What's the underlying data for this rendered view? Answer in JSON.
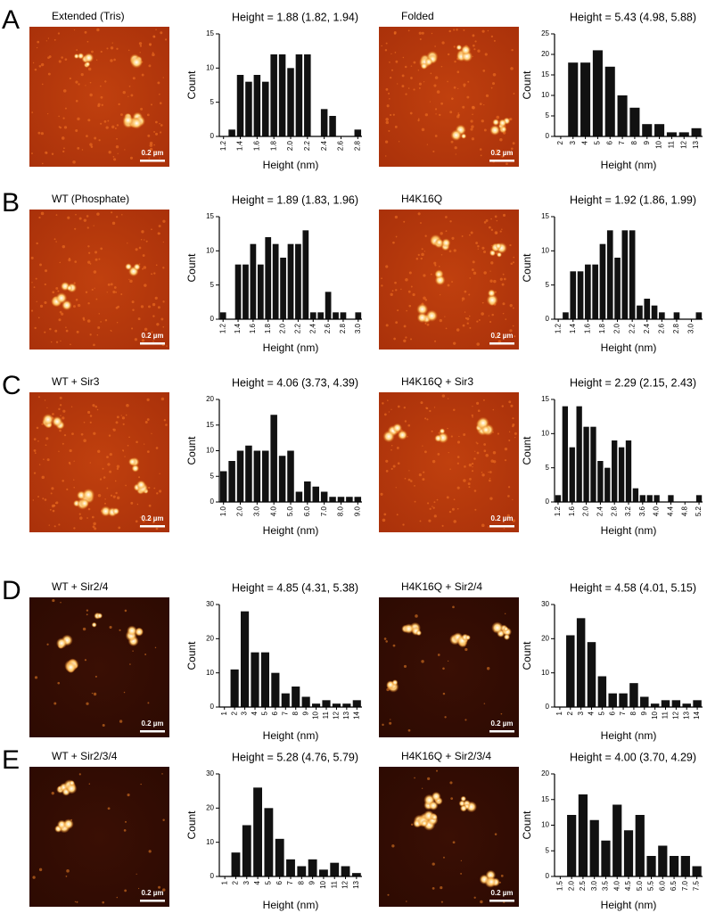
{
  "figure": {
    "panels": [
      {
        "label": "A",
        "images": [
          {
            "caption": "Extended (Tris)",
            "scale_bar": "0.2 µm"
          },
          {
            "caption": "Folded",
            "scale_bar": "0.2 µm"
          }
        ]
      },
      {
        "label": "B",
        "images": [
          {
            "caption": "WT (Phosphate)",
            "scale_bar": "0.2 µm"
          },
          {
            "caption": "H4K16Q",
            "scale_bar": "0.2 µm"
          }
        ]
      },
      {
        "label": "C",
        "images": [
          {
            "caption": "WT + Sir3",
            "scale_bar": "0.2 µm"
          },
          {
            "caption": "H4K16Q + Sir3",
            "scale_bar": "0.2 µm"
          }
        ]
      },
      {
        "label": "D",
        "images": [
          {
            "caption": "WT + Sir2/4",
            "scale_bar": "0.2 µm"
          },
          {
            "caption": "H4K16Q + Sir2/4",
            "scale_bar": "0.2 µm"
          }
        ]
      },
      {
        "label": "E",
        "images": [
          {
            "caption": "WT + Sir2/3/4",
            "scale_bar": "0.2 µm"
          },
          {
            "caption": "H4K16Q + Sir2/3/4",
            "scale_bar": "0.2 µm"
          }
        ]
      }
    ]
  },
  "chart_data": [
    {
      "type": "bar",
      "title": "Height = 1.88 (1.82, 1.94)",
      "x_label": "Height (nm)",
      "y_label": "Count",
      "color": "#111111",
      "categories": [
        "1.2",
        null,
        "1.4",
        null,
        "1.6",
        null,
        "1.8",
        null,
        "2.0",
        null,
        "2.2",
        null,
        "2.4",
        null,
        "2.6",
        null,
        "2.8"
      ],
      "values": [
        0,
        1,
        9,
        8,
        9,
        8,
        12,
        12,
        10,
        12,
        12,
        0,
        4,
        3,
        0,
        0,
        1
      ],
      "ylim": [
        0,
        15
      ],
      "yticks": [
        0,
        5,
        10,
        15
      ]
    },
    {
      "type": "bar",
      "title": "Height = 5.43 (4.98, 5.88)",
      "x_label": "Height (nm)",
      "y_label": "Count",
      "color": "#111111",
      "categories": [
        "2",
        "3",
        "4",
        "5",
        "6",
        "7",
        "8",
        "9",
        "10",
        "11",
        "12",
        "13"
      ],
      "values": [
        0,
        18,
        18,
        21,
        17,
        10,
        7,
        3,
        3,
        1,
        1,
        2
      ],
      "ylim": [
        0,
        25
      ],
      "yticks": [
        0,
        5,
        10,
        15,
        20,
        25
      ]
    },
    {
      "type": "bar",
      "title": "Height = 1.89 (1.83, 1.96)",
      "x_label": "Height (nm)",
      "y_label": "Count",
      "color": "#111111",
      "categories": [
        "1.2",
        null,
        "1.4",
        null,
        "1.6",
        null,
        "1.8",
        null,
        "2.0",
        null,
        "2.2",
        null,
        "2.4",
        null,
        "2.6",
        null,
        "2.8",
        null,
        "3.0"
      ],
      "values": [
        1,
        0,
        8,
        8,
        11,
        8,
        12,
        11,
        9,
        11,
        11,
        13,
        1,
        1,
        4,
        1,
        1,
        0,
        1
      ],
      "ylim": [
        0,
        15
      ],
      "yticks": [
        0,
        5,
        10,
        15
      ]
    },
    {
      "type": "bar",
      "title": "Height = 1.92 (1.86, 1.99)",
      "x_label": "Height (nm)",
      "y_label": "Count",
      "color": "#111111",
      "categories": [
        "1.2",
        null,
        "1.4",
        null,
        "1.6",
        null,
        "1.8",
        null,
        "2.0",
        null,
        "2.2",
        null,
        "2.4",
        null,
        "2.6",
        null,
        "2.8",
        null,
        "3.0",
        null
      ],
      "values": [
        0,
        1,
        7,
        7,
        8,
        8,
        11,
        13,
        9,
        13,
        13,
        2,
        3,
        2,
        1,
        0,
        1,
        0,
        0,
        1
      ],
      "ylim": [
        0,
        15
      ],
      "yticks": [
        0,
        5,
        10,
        15
      ]
    },
    {
      "type": "bar",
      "title": "Height = 4.06 (3.73, 4.39)",
      "x_label": "Height (nm)",
      "y_label": "Count",
      "color": "#111111",
      "categories": [
        "1.0",
        null,
        "2.0",
        null,
        "3.0",
        null,
        "4.0",
        null,
        "5.0",
        null,
        "6.0",
        null,
        "7.0",
        null,
        "8.0",
        null,
        "9.0"
      ],
      "values": [
        6,
        8,
        10,
        11,
        10,
        10,
        17,
        9,
        10,
        2,
        4,
        3,
        2,
        1,
        1,
        1,
        1
      ],
      "ylim": [
        0,
        20
      ],
      "yticks": [
        0,
        5,
        10,
        15,
        20
      ]
    },
    {
      "type": "bar",
      "title": "Height = 2.29 (2.15, 2.43)",
      "x_label": "Height (nm)",
      "y_label": "Count",
      "color": "#111111",
      "categories": [
        "1.2",
        null,
        "1.6",
        null,
        "2.0",
        null,
        "2.4",
        null,
        "2.8",
        null,
        "3.2",
        null,
        "3.6",
        null,
        "4.0",
        null,
        "4.4",
        null,
        "4.8",
        null,
        "5.2"
      ],
      "values": [
        1,
        14,
        8,
        14,
        11,
        11,
        6,
        5,
        9,
        8,
        9,
        2,
        1,
        1,
        1,
        0,
        1,
        0,
        0,
        0,
        1
      ],
      "ylim": [
        0,
        15
      ],
      "yticks": [
        0,
        5,
        10,
        15
      ]
    },
    {
      "type": "bar",
      "title": "Height = 4.85 (4.31, 5.38)",
      "x_label": "Height (nm)",
      "y_label": "Count",
      "color": "#111111",
      "categories": [
        "1",
        "2",
        "3",
        "4",
        "5",
        "6",
        "7",
        "8",
        "9",
        "10",
        "11",
        "12",
        "13",
        "14"
      ],
      "values": [
        0,
        11,
        28,
        16,
        16,
        10,
        4,
        6,
        3,
        1,
        2,
        1,
        1,
        2
      ],
      "ylim": [
        0,
        30
      ],
      "yticks": [
        0,
        10,
        20,
        30
      ]
    },
    {
      "type": "bar",
      "title": "Height = 4.58 (4.01, 5.15)",
      "x_label": "Height (nm)",
      "y_label": "Count",
      "color": "#111111",
      "categories": [
        "1",
        "2",
        "3",
        "4",
        "5",
        "6",
        "7",
        "8",
        "9",
        "10",
        "11",
        "12",
        "13",
        "14"
      ],
      "values": [
        0,
        21,
        26,
        19,
        9,
        4,
        4,
        7,
        3,
        1,
        2,
        2,
        1,
        2
      ],
      "ylim": [
        0,
        30
      ],
      "yticks": [
        0,
        10,
        20,
        30
      ]
    },
    {
      "type": "bar",
      "title": "Height = 5.28 (4.76, 5.79)",
      "x_label": "Height (nm)",
      "y_label": "Count",
      "color": "#111111",
      "categories": [
        "1",
        "2",
        "3",
        "4",
        "5",
        "6",
        "7",
        "8",
        "9",
        "10",
        "11",
        "12",
        "13"
      ],
      "values": [
        0,
        7,
        15,
        26,
        20,
        11,
        5,
        3,
        5,
        2,
        4,
        3,
        1
      ],
      "ylim": [
        0,
        30
      ],
      "yticks": [
        0,
        10,
        20,
        30
      ]
    },
    {
      "type": "bar",
      "title": "Height = 4.00 (3.70, 4.29)",
      "x_label": "Height (nm)",
      "y_label": "Count",
      "color": "#111111",
      "categories": [
        "1.5",
        "2.0",
        "2.5",
        "3.0",
        "3.5",
        "4.0",
        "4.5",
        "5.0",
        "5.5",
        "6.0",
        "6.5",
        "7.0",
        "7.5"
      ],
      "values": [
        0,
        12,
        16,
        11,
        7,
        14,
        9,
        12,
        4,
        6,
        4,
        4,
        2
      ],
      "ylim": [
        0,
        20
      ],
      "yticks": [
        0,
        5,
        10,
        15,
        20
      ]
    }
  ]
}
